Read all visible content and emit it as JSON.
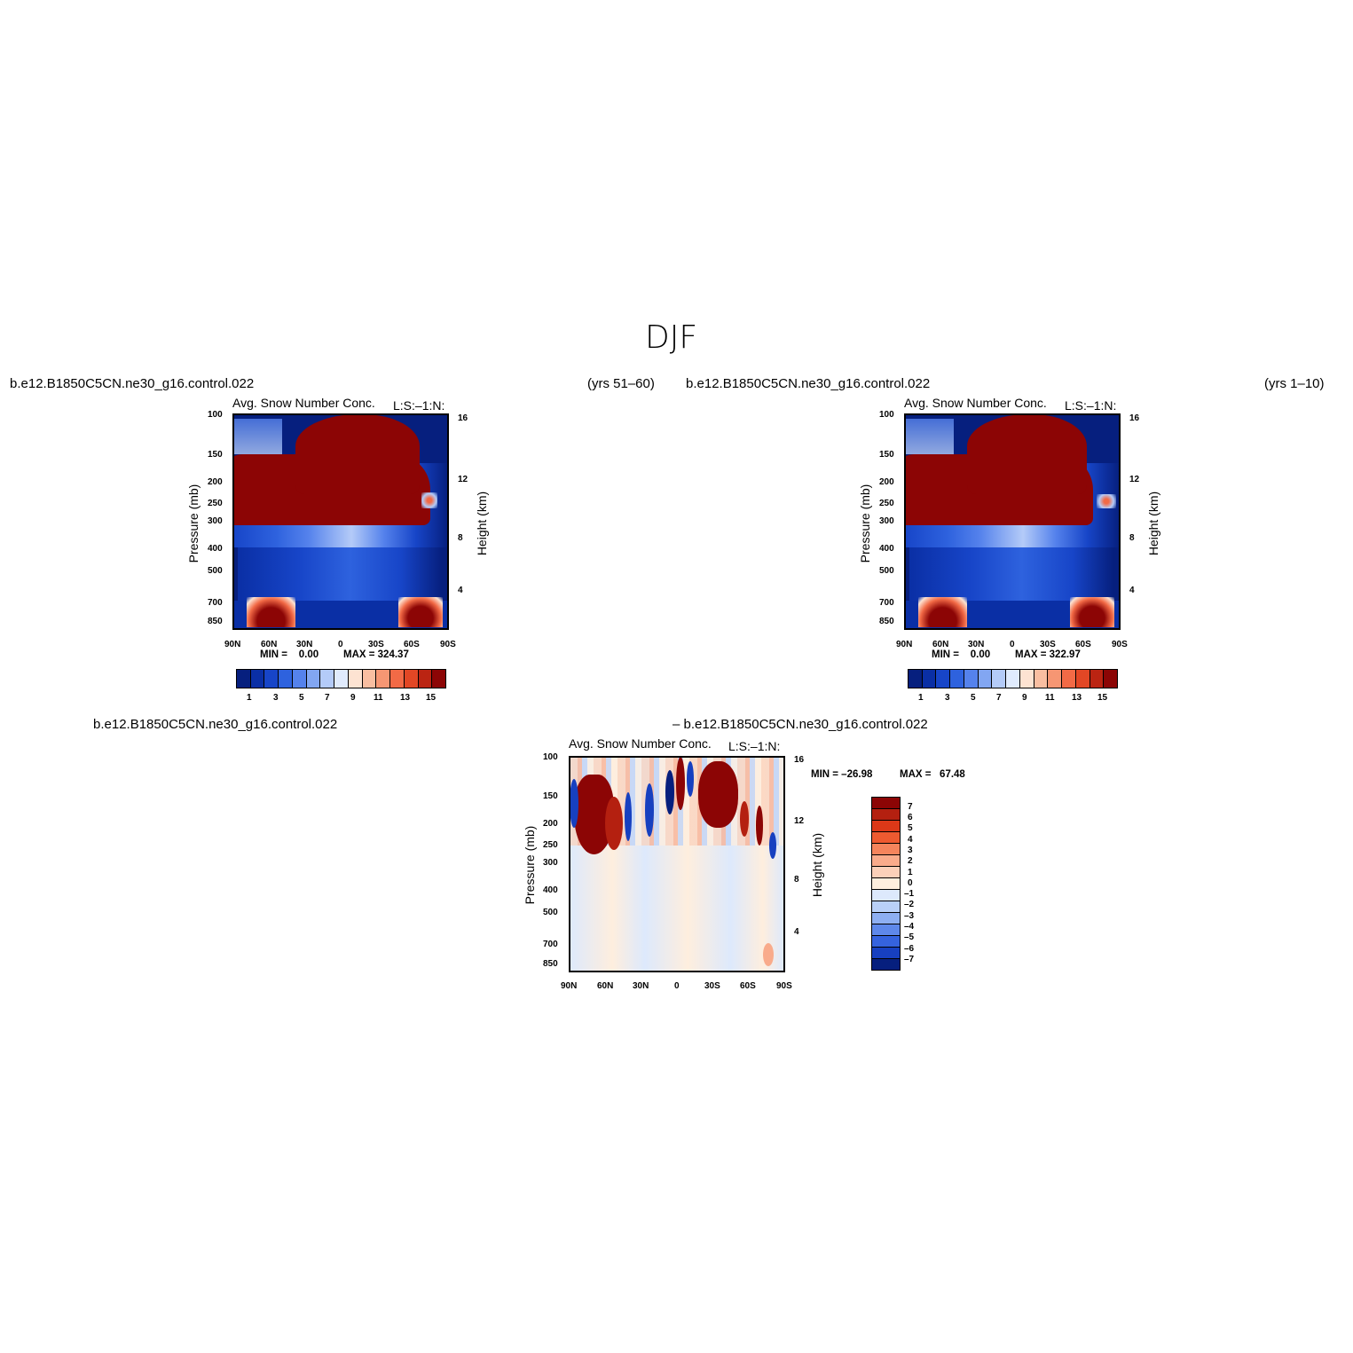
{
  "figure": {
    "title": "DJF",
    "panels": [
      {
        "left_label": "b.e12.B1850C5CN.ne30_g16.control.022",
        "right_label": "(yrs 51–60)",
        "variable": "Avg. Snow Number Conc.",
        "units": "L:S:–1:N:",
        "min_text": "MIN =    0.00",
        "max_text": "MAX = 324.37"
      },
      {
        "left_label": "b.e12.B1850C5CN.ne30_g16.control.022",
        "right_label": "(yrs 1–10)",
        "variable": "Avg. Snow Number Conc.",
        "units": "L:S:–1:N:",
        "min_text": "MIN =    0.00",
        "max_text": "MAX = 322.97"
      },
      {
        "left_label": "b.e12.B1850C5CN.ne30_g16.control.022",
        "right_label": "– b.e12.B1850C5CN.ne30_g16.control.022",
        "variable": "Avg. Snow Number Conc.",
        "units": "L:S:–1:N:",
        "min_text": "MIN = –26.98",
        "max_text": "MAX =   67.48"
      }
    ],
    "axis_labels": {
      "y_left": "Pressure (mb)",
      "y_right": "Height (km)"
    }
  },
  "chart_data": [
    {
      "type": "heatmap",
      "title": "Avg. Snow Number Conc. (yrs 51–60)",
      "xlabel": "Latitude",
      "ylabel": "Pressure (mb)",
      "x_ticks": [
        "90N",
        "60N",
        "30N",
        "0",
        "30S",
        "60S",
        "90S"
      ],
      "y_ticks": [
        100,
        150,
        200,
        250,
        300,
        400,
        500,
        700,
        850
      ],
      "y2_ticks": [
        16,
        12,
        8,
        4
      ],
      "y2label": "Height (km)",
      "value_range": [
        0,
        324.37
      ],
      "colorbar_levels": [
        1,
        2,
        3,
        4,
        5,
        6,
        7,
        8,
        9,
        10,
        11,
        12,
        13,
        14,
        15
      ],
      "colorbar_labels": [
        "1",
        "3",
        "5",
        "7",
        "9",
        "11",
        "13",
        "15"
      ]
    },
    {
      "type": "heatmap",
      "title": "Avg. Snow Number Conc. (yrs 1–10)",
      "xlabel": "Latitude",
      "ylabel": "Pressure (mb)",
      "x_ticks": [
        "90N",
        "60N",
        "30N",
        "0",
        "30S",
        "60S",
        "90S"
      ],
      "y_ticks": [
        100,
        150,
        200,
        250,
        300,
        400,
        500,
        700,
        850
      ],
      "y2_ticks": [
        16,
        12,
        8,
        4
      ],
      "y2label": "Height (km)",
      "value_range": [
        0,
        322.97
      ],
      "colorbar_levels": [
        1,
        2,
        3,
        4,
        5,
        6,
        7,
        8,
        9,
        10,
        11,
        12,
        13,
        14,
        15
      ],
      "colorbar_labels": [
        "1",
        "3",
        "5",
        "7",
        "9",
        "11",
        "13",
        "15"
      ]
    },
    {
      "type": "heatmap",
      "title": "Difference: Avg. Snow Number Conc.",
      "xlabel": "Latitude",
      "ylabel": "Pressure (mb)",
      "x_ticks": [
        "90N",
        "60N",
        "30N",
        "0",
        "30S",
        "60S",
        "90S"
      ],
      "y_ticks": [
        100,
        150,
        200,
        250,
        300,
        400,
        500,
        700,
        850
      ],
      "y2_ticks": [
        16,
        12,
        8,
        4
      ],
      "y2label": "Height (km)",
      "value_range": [
        -26.98,
        67.48
      ],
      "colorbar_labels": [
        "7",
        "6",
        "5",
        "4",
        "3",
        "2",
        "1",
        "0",
        "–1",
        "–2",
        "–3",
        "–4",
        "–5",
        "–6",
        "–7"
      ]
    }
  ],
  "colors": {
    "seq": [
      "#061f7e",
      "#0a2fa5",
      "#1745c8",
      "#2e62de",
      "#5582ec",
      "#82a6f2",
      "#b4cbf8",
      "#e0ebfd",
      "#fde3d2",
      "#f9bea1",
      "#f69673",
      "#f26a46",
      "#e24725",
      "#bb2412",
      "#8c0505"
    ],
    "diff": [
      "#8c0505",
      "#b42010",
      "#dc3818",
      "#ee5a30",
      "#f5845c",
      "#f9ab8b",
      "#fbd0b9",
      "#feeede",
      "#dde9fc",
      "#b9d0f8",
      "#8eaff2",
      "#5e88ea",
      "#3563de",
      "#1740c0",
      "#061f7e"
    ]
  }
}
